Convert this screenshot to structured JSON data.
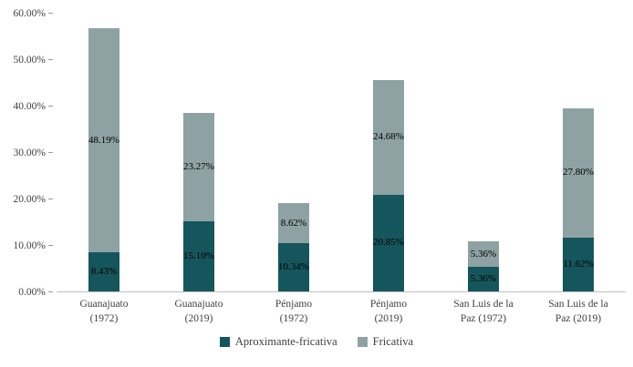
{
  "chart_data": {
    "type": "bar",
    "subtype": "stacked",
    "title": "",
    "categories": [
      [
        "Guanajuato",
        "(1972)"
      ],
      [
        "Guanajuato",
        "(2019)"
      ],
      [
        "Pénjamo",
        "(1972)"
      ],
      [
        "Pénjamo",
        "(2019)"
      ],
      [
        "San Luis de la",
        "Paz (1972)"
      ],
      [
        "San Luis de la",
        "Paz (2019)"
      ]
    ],
    "series": [
      {
        "name": "Aproximante-fricativa",
        "color": "#15565c",
        "values": [
          8.43,
          15.1,
          10.34,
          20.85,
          5.36,
          11.62
        ],
        "labels": [
          "8.43%",
          "15.10%",
          "10.34%",
          "20.85%",
          "5.36%",
          "11.62%"
        ]
      },
      {
        "name": "Fricativa",
        "color": "#8ea2a3",
        "values": [
          48.19,
          23.27,
          8.62,
          24.68,
          5.36,
          27.8
        ],
        "labels": [
          "48.19%",
          "23.27%",
          "8.62%",
          "24.68%",
          "5.36%",
          "27.80%"
        ]
      }
    ],
    "y_axis": {
      "min": 0,
      "max": 60,
      "tick_step": 10,
      "tick_values": [
        0,
        10,
        20,
        30,
        40,
        50,
        60
      ],
      "tick_labels": [
        "0.00%",
        "10.00%",
        "20.00%",
        "30.00%",
        "40.00%",
        "50.00%",
        "60.00%"
      ]
    },
    "grid": false,
    "legend_position": "bottom"
  }
}
